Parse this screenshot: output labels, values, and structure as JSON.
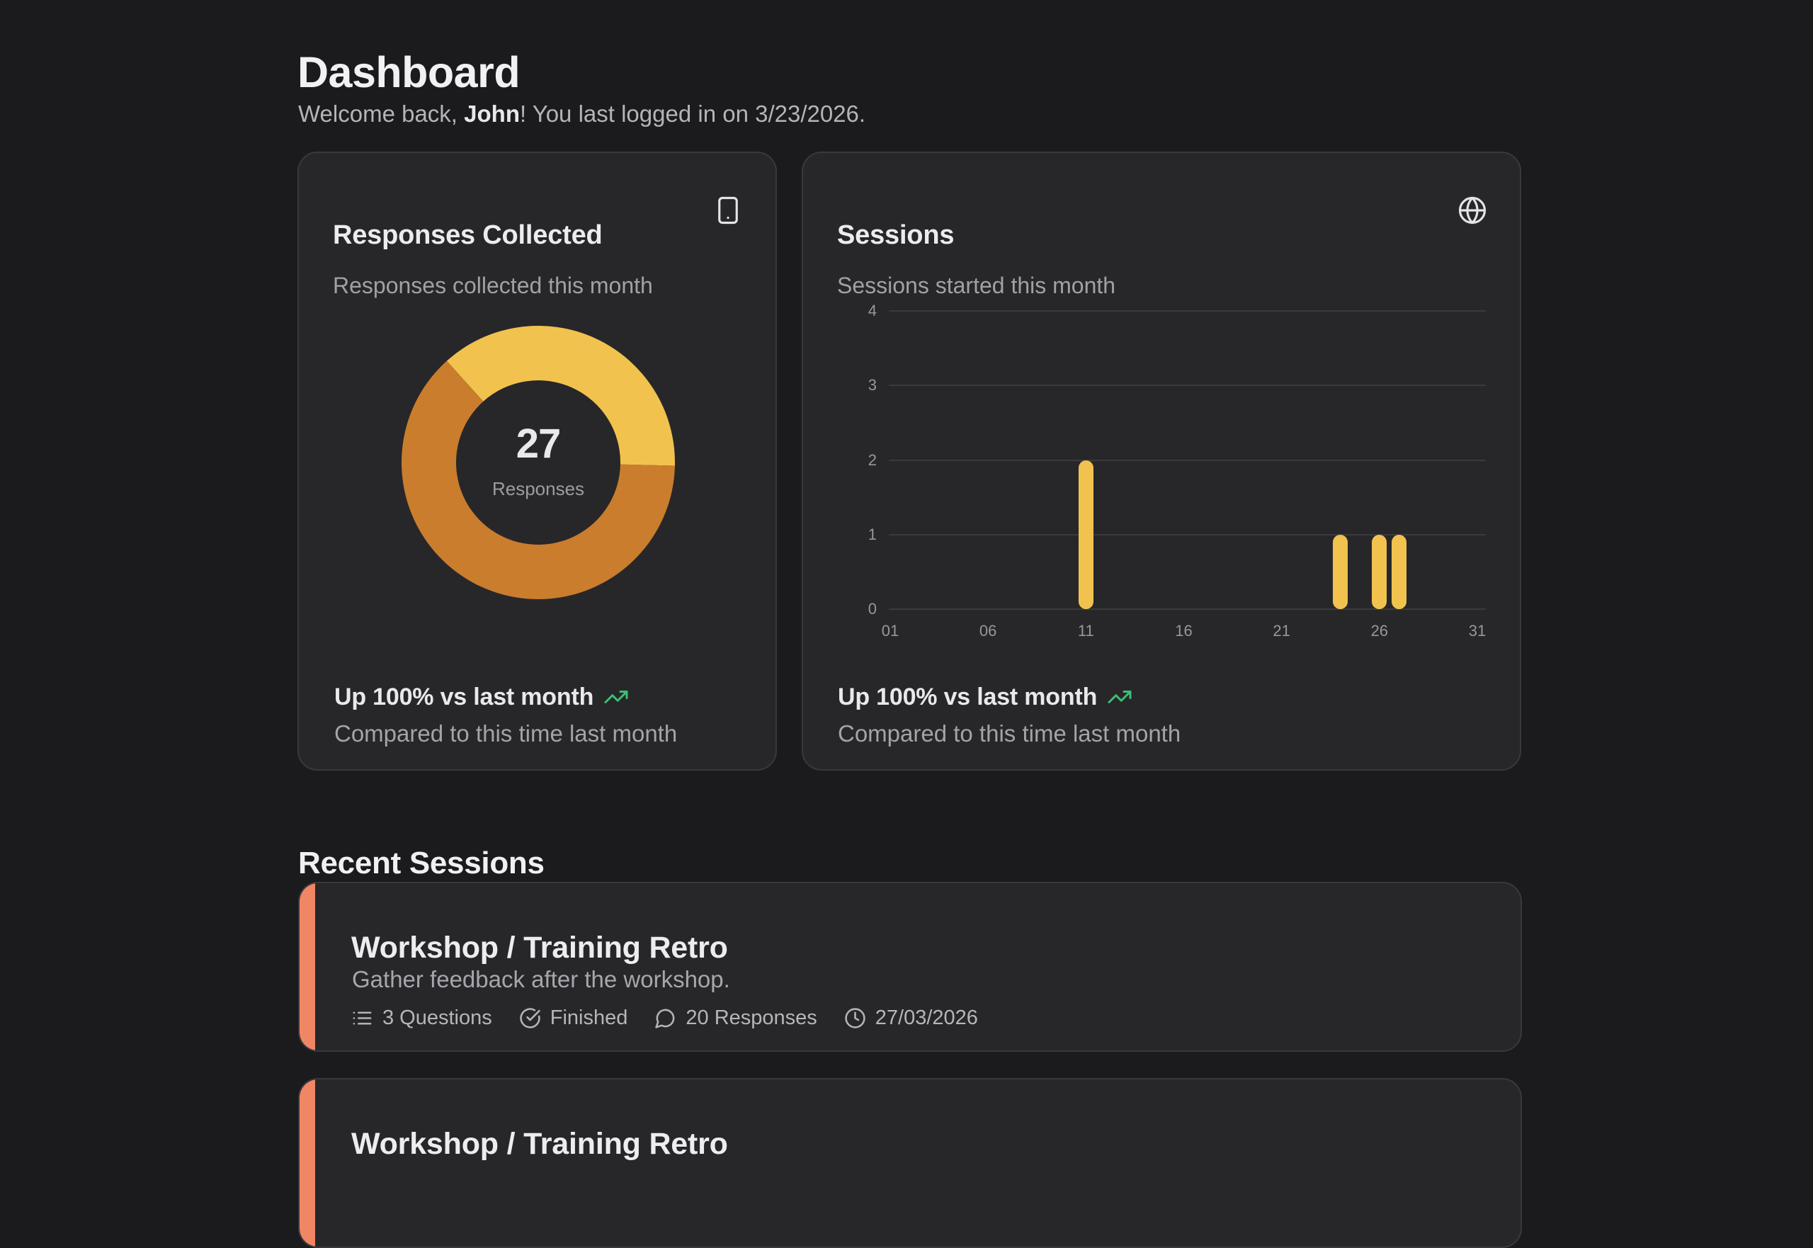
{
  "page": {
    "title": "Dashboard",
    "welcome_prefix": "Welcome back, ",
    "welcome_name": "John",
    "welcome_suffix": "! You last logged in on 3/23/2026."
  },
  "responses_card": {
    "title": "Responses Collected",
    "subtitle": "Responses collected this month",
    "corner_icon": "smartphone-icon",
    "trend_text": "Up 100% vs last month",
    "trend_icon": "trending-up-icon",
    "trend_subtext": "Compared to this time last month"
  },
  "sessions_card": {
    "title": "Sessions",
    "subtitle": "Sessions started this month",
    "corner_icon": "globe-icon",
    "trend_text": "Up 100% vs last month",
    "trend_icon": "trending-up-icon",
    "trend_subtext": "Compared to this time last month"
  },
  "recent": {
    "heading": "Recent Sessions",
    "sessions": [
      {
        "title": "Workshop / Training Retro",
        "description": "Gather feedback after the workshop.",
        "questions": "3 Questions",
        "status": "Finished",
        "responses": "20 Responses",
        "date": "27/03/2026"
      },
      {
        "title": "Workshop / Training Retro"
      }
    ]
  },
  "colors": {
    "accent_yellow": "#F2C24E",
    "accent_orange": "#CA7D2D",
    "accent_salmon": "#F08663",
    "trend_green": "#3FBE76"
  },
  "chart_data": [
    {
      "type": "pie",
      "subtype": "donut",
      "title": "Responses Collected",
      "total": 27,
      "center_value": "27",
      "center_label": "Responses",
      "start_angle_deg": -42,
      "slices": [
        {
          "value": 10,
          "color": "#F2C24E"
        },
        {
          "value": 17,
          "color": "#CA7D2D"
        }
      ]
    },
    {
      "type": "bar",
      "title": "Sessions",
      "x_domain": [
        1,
        31
      ],
      "x_ticks": [
        "01",
        "06",
        "11",
        "16",
        "21",
        "26",
        "31"
      ],
      "y_ticks": [
        0,
        1,
        2,
        3,
        4
      ],
      "ylim": [
        0,
        4
      ],
      "grid": true,
      "bar_color": "#F2C24E",
      "points": [
        {
          "day": 11,
          "value": 2
        },
        {
          "day": 24,
          "value": 1
        },
        {
          "day": 26,
          "value": 1
        },
        {
          "day": 27,
          "value": 1
        }
      ]
    }
  ]
}
